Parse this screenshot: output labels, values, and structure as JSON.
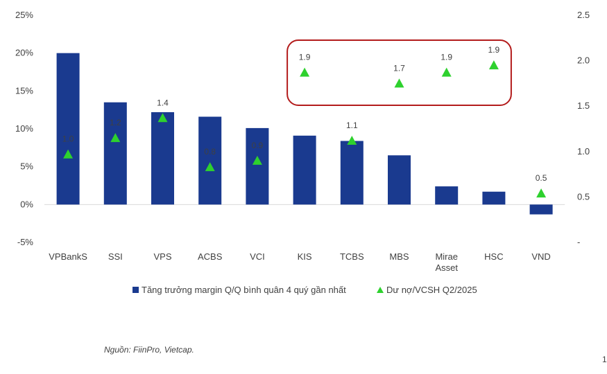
{
  "chart_data": {
    "type": "bar",
    "categories": [
      "VPBankS",
      "SSI",
      "VPS",
      "ACBS",
      "VCI",
      "KIS",
      "TCBS",
      "MBS",
      "Mirae Asset",
      "HSC",
      "VND"
    ],
    "series": [
      {
        "name": "Tăng trưởng margin Q/Q bình quân 4 quý gần nhất",
        "type": "bar",
        "axis": "left",
        "values": [
          20.0,
          13.5,
          12.2,
          11.6,
          10.1,
          9.1,
          8.4,
          6.5,
          2.4,
          1.7,
          -1.3
        ]
      },
      {
        "name": "Dư nợ/VCSH Q2/2025",
        "type": "scatter",
        "marker": "triangle",
        "axis": "right",
        "values": [
          0.97,
          1.15,
          1.37,
          0.83,
          0.9,
          1.87,
          1.12,
          1.75,
          1.87,
          1.95,
          0.54
        ],
        "labels": [
          "1.0",
          "1.2",
          "1.4",
          "0.8",
          "0.9",
          "1.9",
          "1.1",
          "1.7",
          "1.9",
          "1.9",
          "0.5"
        ]
      }
    ],
    "y_left_ticks": [
      "25%",
      "20%",
      "15%",
      "10%",
      "5%",
      "0%",
      "-5%"
    ],
    "y_left_range": [
      -5,
      25
    ],
    "y_right_ticks": [
      "2.5",
      "2.0",
      "1.5",
      "1.0",
      "0.5",
      "-"
    ],
    "y_right_range": [
      0,
      2.5
    ],
    "highlight_categories": [
      "KIS",
      "MBS",
      "Mirae Asset",
      "HSC"
    ],
    "legend_position": "bottom",
    "colors": {
      "bar": "#1a3a8f",
      "marker": "#2ed12e",
      "highlight_box": "#b31b1b",
      "text": "#404040"
    },
    "source": "Nguồn: FiinPro, Vietcap.",
    "page_number": "1"
  }
}
